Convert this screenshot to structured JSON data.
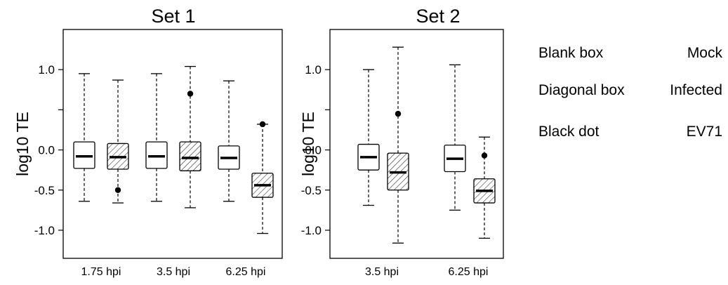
{
  "chart_data": [
    {
      "type": "boxplot",
      "title": "Set 1",
      "ylabel": "log10 TE",
      "ylim": [
        -1.35,
        1.5
      ],
      "yticks": [
        1.0,
        0.5,
        0.0,
        -0.5,
        -1.0
      ],
      "ytick_labels": [
        "1.0",
        "0.0",
        "-0.5",
        "-1.0"
      ],
      "ytick_labelled": [
        1.0,
        0.0,
        -0.5,
        -1.0
      ],
      "categories": [
        "1.75 hpi",
        "3.5 hpi",
        "6.25 hpi"
      ],
      "boxes": [
        {
          "category": "1.75 hpi",
          "group": "Mock",
          "whisker_low": -0.64,
          "q1": -0.23,
          "median": -0.08,
          "q3": 0.1,
          "whisker_high": 0.95,
          "outliers": []
        },
        {
          "category": "1.75 hpi",
          "group": "Infected",
          "whisker_low": -0.66,
          "q1": -0.24,
          "median": -0.09,
          "q3": 0.08,
          "whisker_high": 0.87,
          "outliers": [
            -0.5
          ]
        },
        {
          "category": "3.5 hpi",
          "group": "Mock",
          "whisker_low": -0.64,
          "q1": -0.23,
          "median": -0.08,
          "q3": 0.1,
          "whisker_high": 0.95,
          "outliers": []
        },
        {
          "category": "3.5 hpi",
          "group": "Infected",
          "whisker_low": -0.72,
          "q1": -0.26,
          "median": -0.1,
          "q3": 0.1,
          "whisker_high": 1.04,
          "outliers": [
            0.7
          ]
        },
        {
          "category": "6.25 hpi",
          "group": "Mock",
          "whisker_low": -0.64,
          "q1": -0.24,
          "median": -0.1,
          "q3": 0.05,
          "whisker_high": 0.86,
          "outliers": []
        },
        {
          "category": "6.25 hpi",
          "group": "Infected",
          "whisker_low": -1.04,
          "q1": -0.59,
          "median": -0.44,
          "q3": -0.29,
          "whisker_high": 0.32,
          "outliers": [
            0.32
          ]
        }
      ]
    },
    {
      "type": "boxplot",
      "title": "Set 2",
      "ylabel": "log10 TE",
      "ylim": [
        -1.35,
        1.5
      ],
      "yticks": [
        1.0,
        0.5,
        0.0,
        -0.5,
        -1.0
      ],
      "ytick_labels": [
        "1.0",
        "0.0",
        "-0.5",
        "-1.0"
      ],
      "ytick_labelled": [
        1.0,
        0.0,
        -0.5,
        -1.0
      ],
      "categories": [
        "3.5 hpi",
        "6.25 hpi"
      ],
      "boxes": [
        {
          "category": "3.5 hpi",
          "group": "Mock",
          "whisker_low": -0.69,
          "q1": -0.25,
          "median": -0.09,
          "q3": 0.07,
          "whisker_high": 1.0,
          "outliers": []
        },
        {
          "category": "3.5 hpi",
          "group": "Infected",
          "whisker_low": -1.16,
          "q1": -0.5,
          "median": -0.28,
          "q3": -0.04,
          "whisker_high": 1.28,
          "outliers": [
            0.45
          ]
        },
        {
          "category": "6.25 hpi",
          "group": "Mock",
          "whisker_low": -0.75,
          "q1": -0.27,
          "median": -0.11,
          "q3": 0.06,
          "whisker_high": 1.06,
          "outliers": []
        },
        {
          "category": "6.25 hpi",
          "group": "Infected",
          "whisker_low": -1.1,
          "q1": -0.66,
          "median": -0.51,
          "q3": -0.36,
          "whisker_high": 0.16,
          "outliers": [
            -0.07
          ]
        }
      ]
    }
  ],
  "legend": [
    {
      "symbol": "Blank box",
      "meaning": "Mock"
    },
    {
      "symbol": "Diagonal box",
      "meaning": "Infected"
    },
    {
      "symbol": "Black dot",
      "meaning": "EV71"
    }
  ]
}
